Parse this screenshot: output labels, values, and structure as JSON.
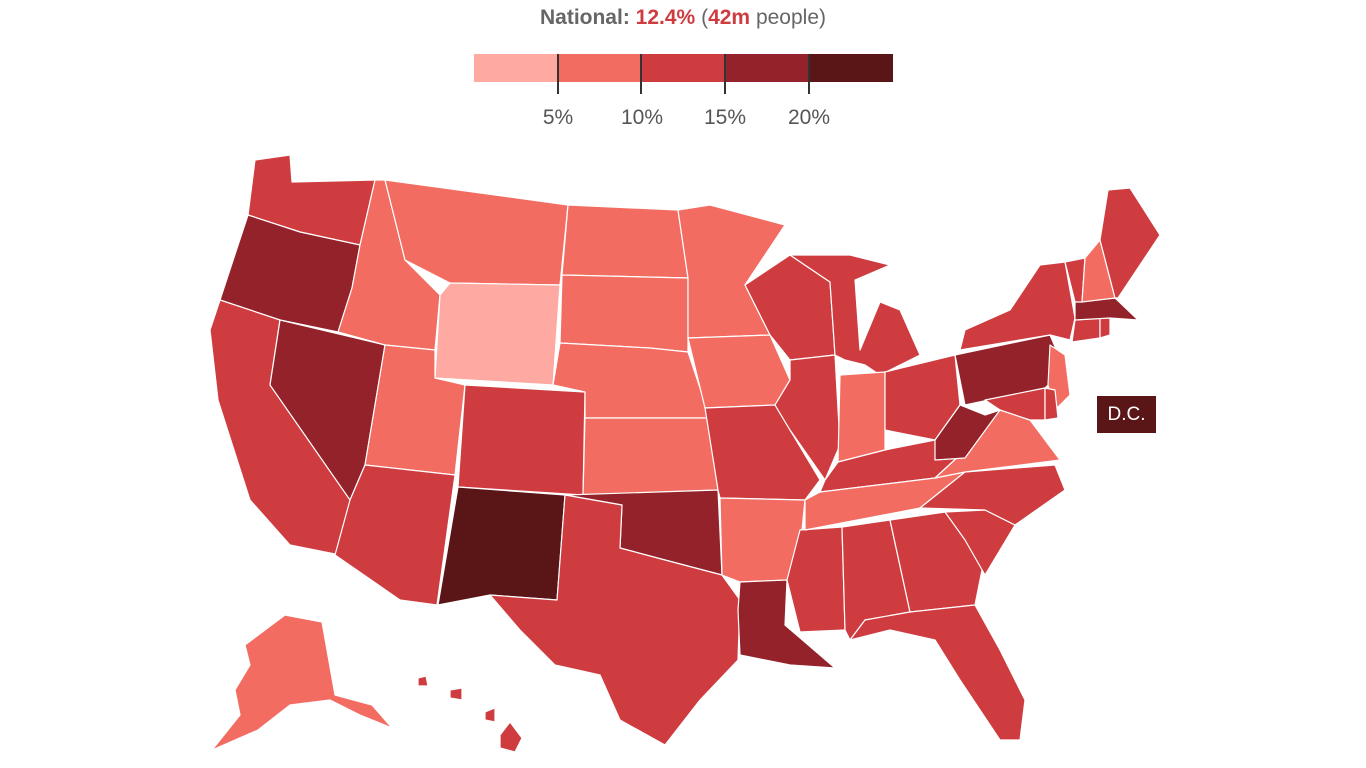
{
  "headline": {
    "label": "National:",
    "rate": "12.4%",
    "open_paren": "(",
    "count": "42m",
    "rest": "people)"
  },
  "legend": {
    "colors": [
      "#fea9a1",
      "#f26c62",
      "#cf3c40",
      "#93222a",
      "#5a1517"
    ],
    "ticks": [
      "5%",
      "10%",
      "15%",
      "20%"
    ]
  },
  "dc": {
    "label": "D.C.",
    "color": "#5a1517"
  },
  "map_colors": {
    "very_light": "#fea9a1",
    "light": "#f26c62",
    "medium": "#cf3c40",
    "dark": "#93222a",
    "darkest": "#5a1517"
  }
}
